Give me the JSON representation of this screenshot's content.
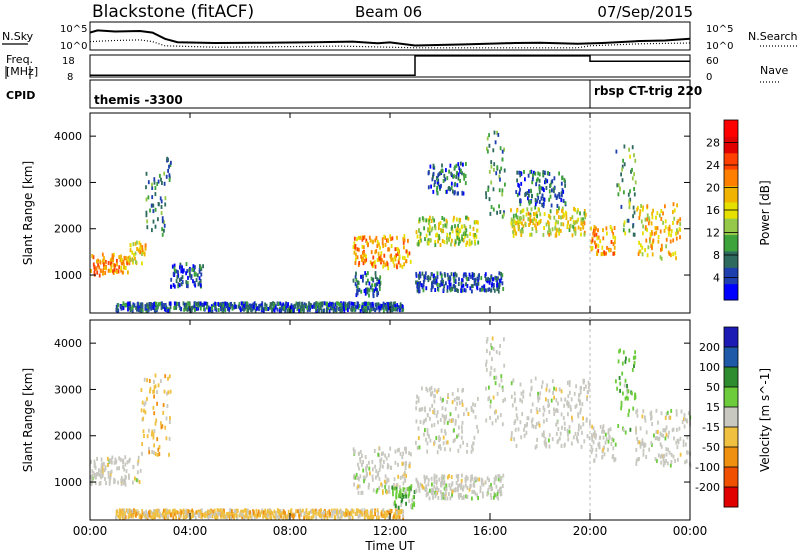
{
  "header": {
    "radar": "Blackstone (fitACF)",
    "beam": "Beam 06",
    "date": "07/Sep/2015"
  },
  "status": {
    "noise": {
      "left_label": "N.Sky",
      "right_label": "N.Search",
      "left_ticks": [
        "10^5",
        "10^0"
      ],
      "right_ticks": [
        "10^5",
        "10^0"
      ],
      "sky": [
        [
          0,
          0.62
        ],
        [
          0.3,
          0.7
        ],
        [
          1,
          0.66
        ],
        [
          2,
          0.68
        ],
        [
          2.5,
          0.62
        ],
        [
          3,
          0.4
        ],
        [
          3.5,
          0.28
        ],
        [
          5,
          0.25
        ],
        [
          7,
          0.26
        ],
        [
          9,
          0.28
        ],
        [
          10.5,
          0.3
        ],
        [
          11.5,
          0.24
        ],
        [
          12,
          0.27
        ],
        [
          13,
          0.16
        ],
        [
          15,
          0.2
        ],
        [
          17,
          0.25
        ],
        [
          18,
          0.26
        ],
        [
          19.5,
          0.22
        ],
        [
          20.5,
          0.25
        ],
        [
          22,
          0.32
        ],
        [
          23,
          0.34
        ],
        [
          24,
          0.4
        ]
      ],
      "search": [
        [
          0,
          0.3
        ],
        [
          1,
          0.34
        ],
        [
          2,
          0.36
        ],
        [
          2.5,
          0.3
        ],
        [
          3,
          0.15
        ],
        [
          5,
          0.1
        ],
        [
          8,
          0.12
        ],
        [
          10,
          0.14
        ],
        [
          12,
          0.1
        ],
        [
          13,
          0.08
        ],
        [
          16,
          0.08
        ],
        [
          19.5,
          0.08
        ],
        [
          20,
          0.15
        ],
        [
          22,
          0.22
        ],
        [
          24,
          0.25
        ]
      ]
    },
    "frequency": {
      "label": "Freq.",
      "unit": "[MHz]",
      "ticks": [
        "18",
        "8"
      ],
      "segments": [
        [
          0,
          8.8
        ],
        [
          13,
          8.8
        ],
        [
          13,
          17.6
        ],
        [
          20,
          17.6
        ],
        [
          20,
          15.2
        ],
        [
          24,
          15.2
        ]
      ]
    },
    "nave": {
      "label": "Nave",
      "ticks": [
        "60",
        "0"
      ]
    },
    "cpid": {
      "label": "CPID",
      "segments": [
        "themis -3300",
        "rbsp CT-trig 220"
      ]
    }
  },
  "chart_data": [
    {
      "type": "heatmap",
      "title": "",
      "xlabel": "Time UT",
      "ylabel": "Slant Range [km]",
      "xlim": [
        0,
        24
      ],
      "ylim": [
        180,
        4500
      ],
      "yticks": [
        1000,
        2000,
        3000,
        4000
      ],
      "colorbar": {
        "label": "Power [dB]",
        "ticks": [
          4,
          8,
          12,
          16,
          20,
          24,
          28
        ],
        "range": [
          0,
          32
        ],
        "colors": [
          "#0000ff",
          "#1f3fae",
          "#2e6b5e",
          "#3ea33a",
          "#96c84a",
          "#e6e000",
          "#f0b400",
          "#ff8000",
          "#ff4000",
          "#e00000",
          "#ff0000"
        ]
      },
      "echo_bands": [
        {
          "t0": 0,
          "t1": 0.6,
          "r0": 900,
          "r1": 1400,
          "p": 22
        },
        {
          "t0": 0.6,
          "t1": 1.5,
          "r0": 1000,
          "r1": 1400,
          "p": 20
        },
        {
          "t0": 1.5,
          "t1": 2.2,
          "r0": 1200,
          "r1": 1700,
          "p": 18
        },
        {
          "t0": 2.2,
          "t1": 3.0,
          "r0": 1800,
          "r1": 3200,
          "p": 8
        },
        {
          "t0": 3.0,
          "t1": 3.2,
          "r0": 3000,
          "r1": 3500,
          "p": 6
        },
        {
          "t0": 3.2,
          "t1": 4.5,
          "r0": 700,
          "r1": 1200,
          "p": 5
        },
        {
          "t0": 1,
          "t1": 12.5,
          "r0": 180,
          "r1": 350,
          "p": 6
        },
        {
          "t0": 10.5,
          "t1": 12.8,
          "r0": 1100,
          "r1": 1800,
          "p": 20
        },
        {
          "t0": 10.5,
          "t1": 11.6,
          "r0": 500,
          "r1": 1000,
          "p": 6
        },
        {
          "t0": 13,
          "t1": 15.5,
          "r0": 1600,
          "r1": 2200,
          "p": 14
        },
        {
          "t0": 13.5,
          "t1": 15,
          "r0": 2700,
          "r1": 3400,
          "p": 6
        },
        {
          "t0": 13,
          "t1": 16.5,
          "r0": 600,
          "r1": 1000,
          "p": 5
        },
        {
          "t0": 15.8,
          "t1": 16.6,
          "r0": 2200,
          "r1": 4100,
          "p": 8
        },
        {
          "t0": 16.8,
          "t1": 19.8,
          "r0": 1800,
          "r1": 2400,
          "p": 16
        },
        {
          "t0": 17,
          "t1": 19,
          "r0": 2400,
          "r1": 3200,
          "p": 6
        },
        {
          "t0": 20,
          "t1": 21,
          "r0": 1400,
          "r1": 2000,
          "p": 20
        },
        {
          "t0": 21,
          "t1": 21.8,
          "r0": 1800,
          "r1": 3800,
          "p": 10
        },
        {
          "t0": 21.8,
          "t1": 23.6,
          "r0": 1300,
          "r1": 2500,
          "p": 18
        }
      ]
    },
    {
      "type": "heatmap",
      "title": "",
      "xlabel": "Time UT",
      "ylabel": "Slant Range [km]",
      "xlim": [
        0,
        24
      ],
      "ylim": [
        180,
        4500
      ],
      "xticks": [
        "00:00",
        "04:00",
        "08:00",
        "12:00",
        "16:00",
        "20:00",
        "00:00"
      ],
      "yticks": [
        1000,
        2000,
        3000,
        4000
      ],
      "colorbar": {
        "label": "Velocity [m s^-1]",
        "ticks": [
          200,
          100,
          50,
          15,
          -15,
          -50,
          -100,
          -200
        ],
        "colors": [
          "#1c1cb4",
          "#1f5aa8",
          "#2e8b2e",
          "#6ccc3c",
          "#c8c8c0",
          "#f0c040",
          "#f09010",
          "#f05000",
          "#e00000"
        ]
      },
      "echo_bands": [
        {
          "t0": 0,
          "t1": 2.0,
          "r0": 900,
          "r1": 1500,
          "v": 0
        },
        {
          "t0": 2.0,
          "t1": 3.2,
          "r0": 1500,
          "r1": 3300,
          "v": -40
        },
        {
          "t0": 1,
          "t1": 12.5,
          "r0": 180,
          "r1": 350,
          "v": -30
        },
        {
          "t0": 10.5,
          "t1": 12.8,
          "r0": 700,
          "r1": 1700,
          "v": 0
        },
        {
          "t0": 12,
          "t1": 13,
          "r0": 400,
          "r1": 900,
          "v": 30
        },
        {
          "t0": 13,
          "t1": 15.5,
          "r0": 1600,
          "r1": 3000,
          "v": 0
        },
        {
          "t0": 13,
          "t1": 16.5,
          "r0": 600,
          "r1": 1100,
          "v": 0
        },
        {
          "t0": 15.8,
          "t1": 16.6,
          "r0": 2200,
          "r1": 4100,
          "v": 0
        },
        {
          "t0": 16.8,
          "t1": 20,
          "r0": 1700,
          "r1": 3200,
          "v": 0
        },
        {
          "t0": 20,
          "t1": 21,
          "r0": 1400,
          "r1": 2200,
          "v": 0
        },
        {
          "t0": 21,
          "t1": 21.8,
          "r0": 2000,
          "r1": 3800,
          "v": 40
        },
        {
          "t0": 21.8,
          "t1": 24,
          "r0": 1300,
          "r1": 2500,
          "v": 0
        }
      ]
    }
  ]
}
